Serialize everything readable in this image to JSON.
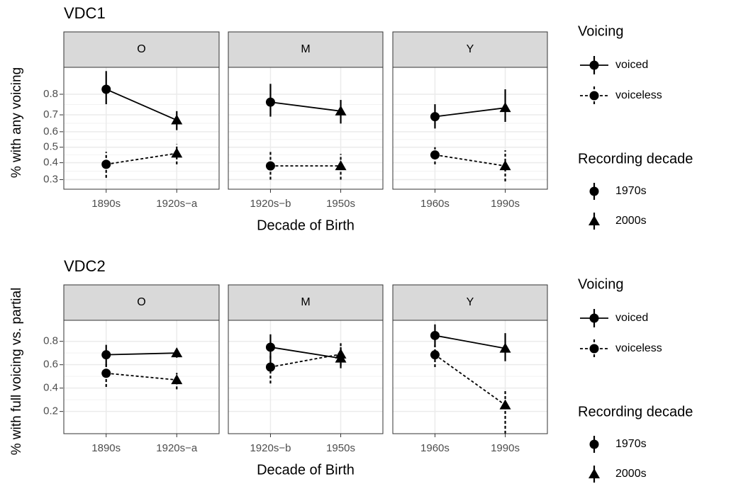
{
  "chart_data": [
    {
      "type": "line",
      "title": "VDC1",
      "y_label": "% with any voicing",
      "x_label": "Decade of Birth",
      "yscale": "logit",
      "ylim": [
        0.25,
        0.89
      ],
      "yticks": [
        0.3,
        0.4,
        0.5,
        0.6,
        0.7,
        0.8
      ],
      "grid": true,
      "legend_title": "Voicing",
      "series": [
        {
          "name": "voiced",
          "color": "#000000",
          "linestyle": "solid"
        },
        {
          "name": "voiceless",
          "color": "#000000",
          "linestyle": "dashed"
        }
      ],
      "shape_legend": {
        "title": "Recording decade",
        "entries": [
          {
            "name": "1970s",
            "shape": "circle"
          },
          {
            "name": "2000s",
            "shape": "triangle"
          }
        ]
      },
      "facets": [
        {
          "label": "O",
          "categories": [
            "1890s",
            "1920s−a"
          ],
          "series": [
            {
              "values": [
                0.82,
                0.67
              ],
              "lower": [
                0.755,
                0.61
              ],
              "upper": [
                0.88,
                0.72
              ]
            },
            {
              "values": [
                0.39,
                0.46
              ],
              "lower": [
                0.31,
                0.39
              ],
              "upper": [
                0.47,
                0.52
              ]
            }
          ]
        },
        {
          "label": "M",
          "categories": [
            "1920s−b",
            "1950s"
          ],
          "series": [
            {
              "values": [
                0.765,
                0.72
              ],
              "lower": [
                0.69,
                0.65
              ],
              "upper": [
                0.84,
                0.775
              ]
            },
            {
              "values": [
                0.38,
                0.38
              ],
              "lower": [
                0.3,
                0.3
              ],
              "upper": [
                0.48,
                0.456
              ]
            }
          ]
        },
        {
          "label": "Y",
          "categories": [
            "1960s",
            "1990s"
          ],
          "series": [
            {
              "values": [
                0.69,
                0.737
              ],
              "lower": [
                0.62,
                0.66
              ],
              "upper": [
                0.755,
                0.82
              ]
            },
            {
              "values": [
                0.45,
                0.38
              ],
              "lower": [
                0.39,
                0.29
              ],
              "upper": [
                0.5,
                0.48
              ]
            }
          ]
        }
      ]
    },
    {
      "type": "line",
      "title": "VDC2",
      "y_label": "% with full voicing vs. partial",
      "x_label": "Decade of Birth",
      "yscale": "linear",
      "ylim": [
        0.01,
        0.98
      ],
      "yticks": [
        0.2,
        0.4,
        0.6,
        0.8
      ],
      "grid": true,
      "legend_title": "Voicing",
      "series": [
        {
          "name": "voiced",
          "color": "#000000",
          "linestyle": "solid"
        },
        {
          "name": "voiceless",
          "color": "#000000",
          "linestyle": "dashed"
        }
      ],
      "shape_legend": {
        "title": "Recording decade",
        "entries": [
          {
            "name": "1970s",
            "shape": "circle"
          },
          {
            "name": "2000s",
            "shape": "triangle"
          }
        ]
      },
      "facets": [
        {
          "label": "O",
          "categories": [
            "1890s",
            "1920s−a"
          ],
          "series": [
            {
              "values": [
                0.685,
                0.7
              ],
              "lower": [
                0.59,
                0.66
              ],
              "upper": [
                0.77,
                0.74
              ]
            },
            {
              "values": [
                0.527,
                0.47
              ],
              "lower": [
                0.41,
                0.39
              ],
              "upper": [
                0.61,
                0.53
              ]
            }
          ]
        },
        {
          "label": "M",
          "categories": [
            "1920s−b",
            "1950s"
          ],
          "series": [
            {
              "values": [
                0.75,
                0.655
              ],
              "lower": [
                0.63,
                0.57
              ],
              "upper": [
                0.86,
                0.75
              ]
            },
            {
              "values": [
                0.58,
                0.69
              ],
              "lower": [
                0.44,
                0.59
              ],
              "upper": [
                0.69,
                0.8
              ]
            }
          ]
        },
        {
          "label": "Y",
          "categories": [
            "1960s",
            "1990s"
          ],
          "series": [
            {
              "values": [
                0.85,
                0.74
              ],
              "lower": [
                0.75,
                0.63
              ],
              "upper": [
                0.945,
                0.87
              ]
            },
            {
              "values": [
                0.685,
                0.255
              ],
              "lower": [
                0.58,
                0.01
              ],
              "upper": [
                0.77,
                0.39
              ]
            }
          ]
        }
      ]
    }
  ]
}
